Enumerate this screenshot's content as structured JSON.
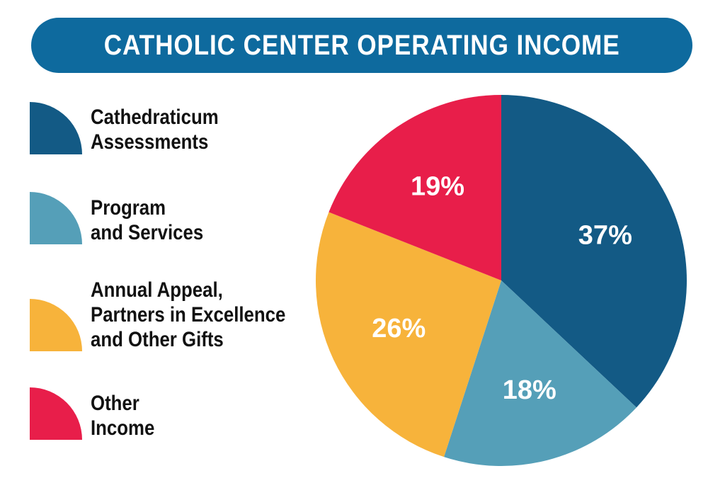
{
  "title": "CATHOLIC CENTER OPERATING INCOME",
  "colors": {
    "title_bar": "#0e6a9e",
    "cathedraticum": "#135a85",
    "program": "#559fb8",
    "appeal": "#f7b33b",
    "other": "#e81e4a"
  },
  "legend": [
    {
      "label": "Cathedraticum\nAssessments",
      "color": "#135a85"
    },
    {
      "label": "Program\nand Services",
      "color": "#559fb8"
    },
    {
      "label": "Annual Appeal,\nPartners in Excellence\nand Other Gifts",
      "color": "#f7b33b"
    },
    {
      "label": "Other\nIncome",
      "color": "#e81e4a"
    }
  ],
  "chart_data": {
    "type": "pie",
    "title": "CATHOLIC CENTER OPERATING INCOME",
    "legend_placement": "left",
    "slices": [
      {
        "name": "Cathedraticum Assessments",
        "value": 37,
        "label": "37%",
        "color": "#135a85"
      },
      {
        "name": "Program and Services",
        "value": 18,
        "label": "18%",
        "color": "#559fb8"
      },
      {
        "name": "Annual Appeal, Partners in Excellence and Other Gifts",
        "value": 26,
        "label": "26%",
        "color": "#f7b33b"
      },
      {
        "name": "Other Income",
        "value": 19,
        "label": "19%",
        "color": "#e81e4a"
      }
    ]
  }
}
